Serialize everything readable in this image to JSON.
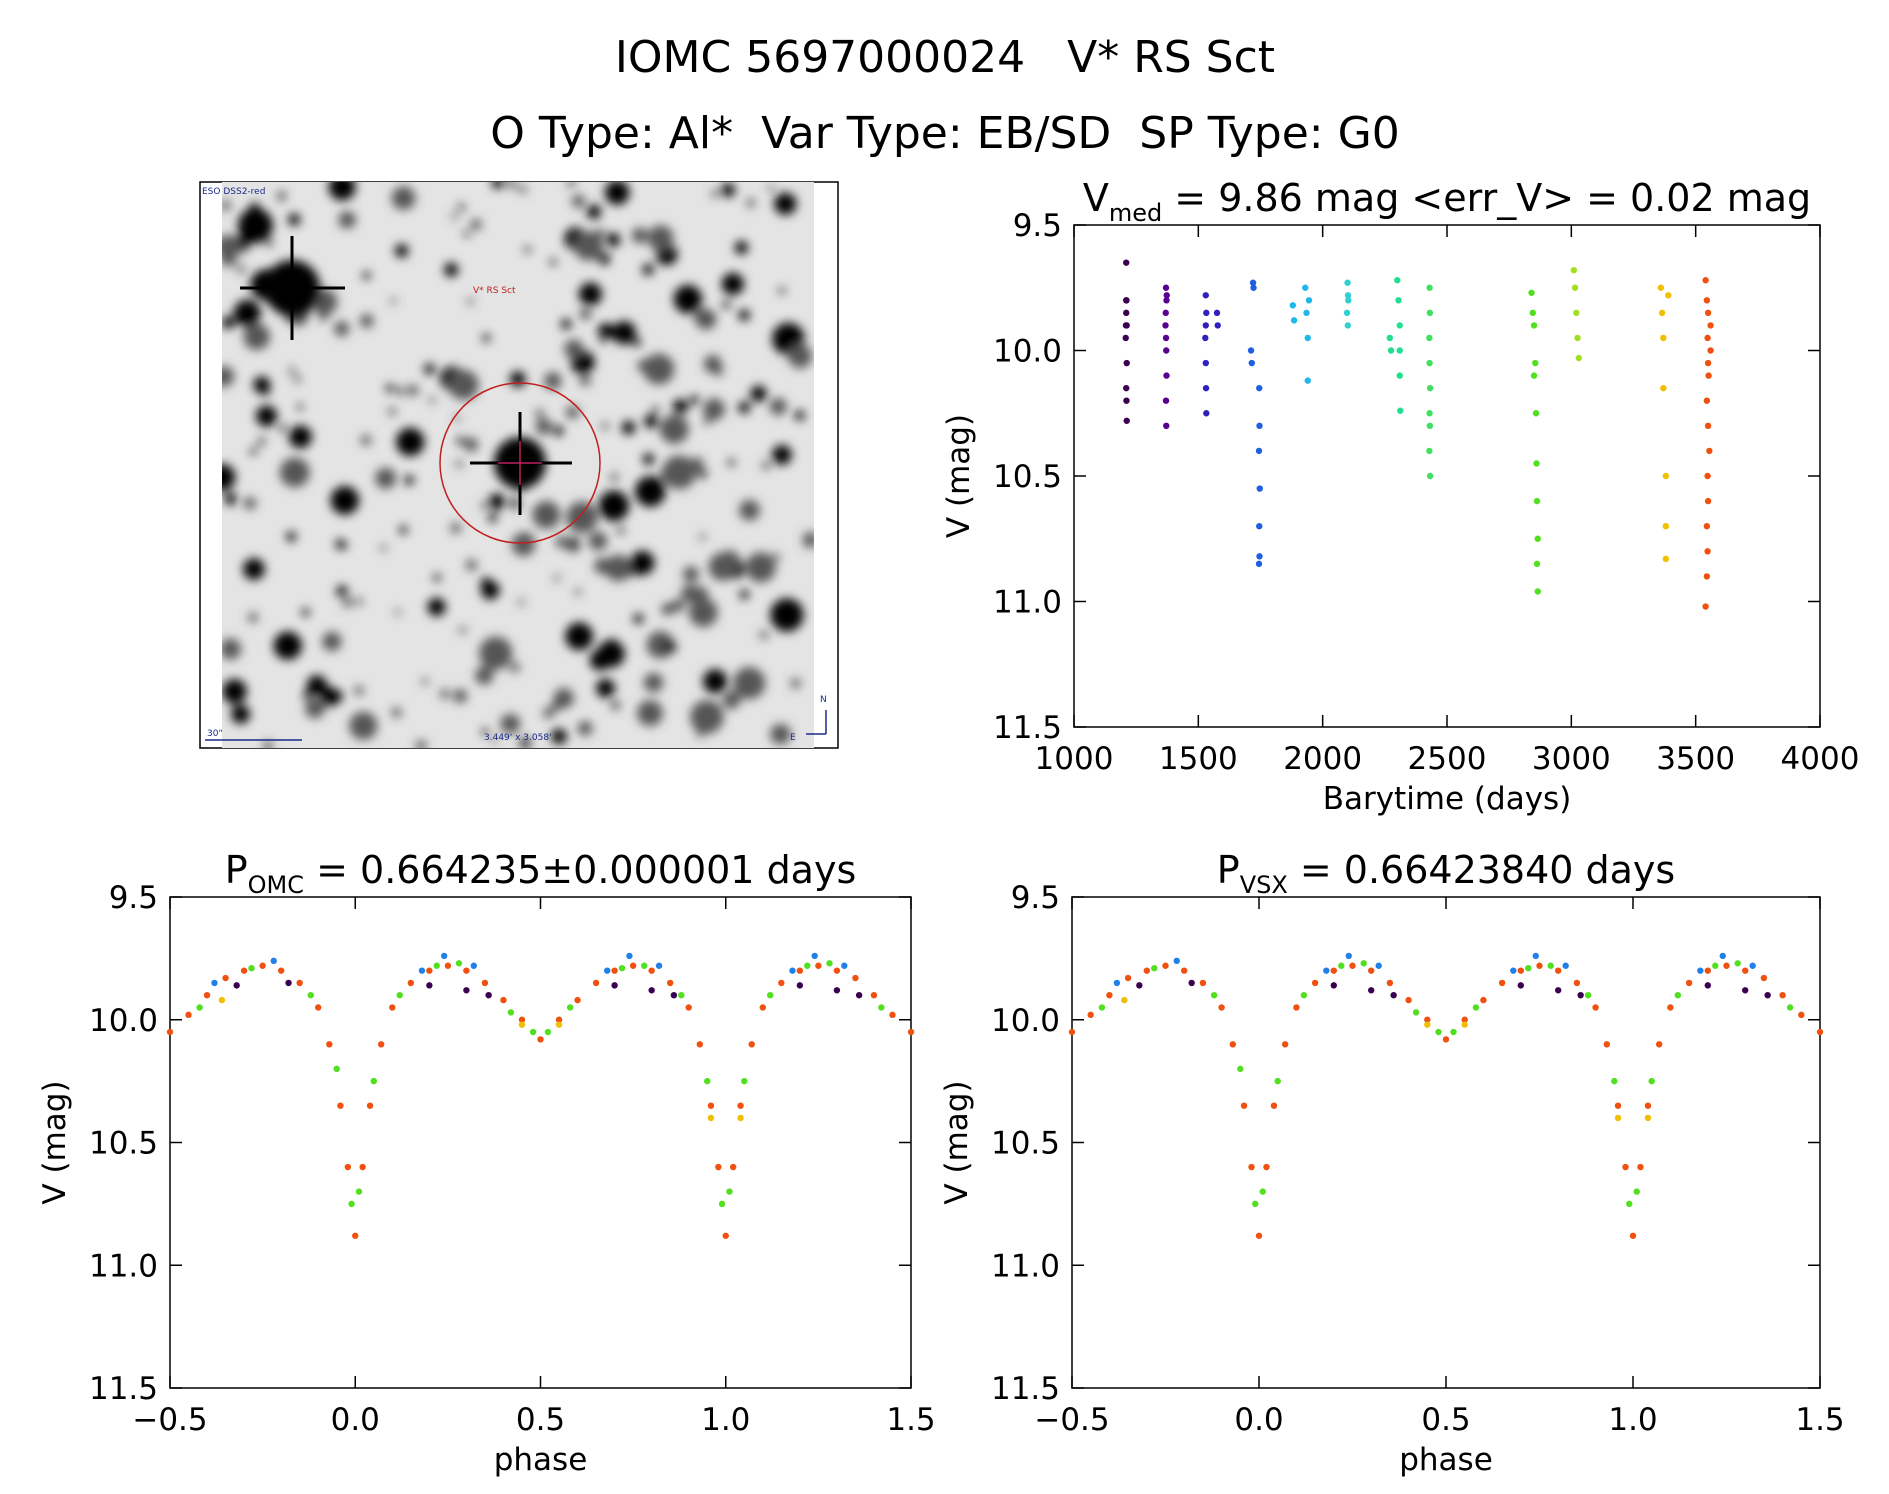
{
  "header": {
    "line1": "IOMC 5697000024   V* RS Sct",
    "line2": "O Type: Al*  Var Type: EB/SD  SP Type: G0"
  },
  "image": {
    "corner_label": "ESO DSS2-red",
    "target_label": "V* RS Sct",
    "scale_label": "30\"",
    "fov_label": "3.449' x 3.058'",
    "north": "N",
    "east": "E"
  },
  "chart_data": [
    {
      "type": "scatter",
      "title": {
        "main": "V",
        "sub": "med",
        "rest": " = 9.86 mag <err_V> = 0.02 mag"
      },
      "x_label": "Barytime (days)",
      "y_label": "V (mag)",
      "xlim": [
        1000,
        4000
      ],
      "xticks": [
        1000,
        1500,
        2000,
        2500,
        3000,
        3500,
        4000
      ],
      "ylim": [
        9.5,
        11.5
      ],
      "y_reversed": true,
      "yticks": [
        9.5,
        {
          "value": 10,
          "label": "10.0"
        },
        10.5,
        {
          "value": 11,
          "label": "11.0"
        },
        11.5
      ],
      "series": [
        {
          "color": "#3a0050",
          "x": [
            1210,
            1210,
            1212,
            1208,
            1211,
            1212,
            1210,
            1211,
            1212,
            1210,
            1209
          ],
          "values": [
            9.8,
            9.85,
            9.9,
            9.95,
            9.8,
            10.05,
            10.15,
            10.2,
            10.28,
            9.65,
            9.9
          ]
        },
        {
          "color": "#5a0090",
          "x": [
            1370,
            1372,
            1368,
            1370,
            1371,
            1372,
            1370,
            1371,
            1369,
            1373
          ],
          "values": [
            9.75,
            9.8,
            9.9,
            9.95,
            10.0,
            10.1,
            10.2,
            10.3,
            9.85,
            9.78
          ]
        },
        {
          "color": "#3020c0",
          "x": [
            1530,
            1532,
            1528,
            1530,
            1531,
            1532,
            1530,
            1575,
            1578
          ],
          "values": [
            9.78,
            9.85,
            9.95,
            10.05,
            10.15,
            10.25,
            9.9,
            9.85,
            9.9
          ]
        },
        {
          "color": "#2060e0",
          "x": [
            1720,
            1722,
            1715,
            1712,
            1745,
            1746,
            1744,
            1747,
            1745,
            1746,
            1744
          ],
          "values": [
            9.73,
            9.75,
            10.05,
            10.0,
            10.15,
            10.3,
            10.4,
            10.55,
            10.7,
            10.82,
            10.85
          ]
        },
        {
          "color": "#20b8e8",
          "x": [
            1880,
            1885,
            1930,
            1935,
            1940,
            1940,
            1945
          ],
          "values": [
            9.82,
            9.88,
            9.75,
            9.85,
            9.95,
            10.12,
            9.8
          ]
        },
        {
          "color": "#30d0d0",
          "x": [
            2100,
            2102,
            2098,
            2101,
            2103
          ],
          "values": [
            9.73,
            9.78,
            9.85,
            9.9,
            9.8
          ]
        },
        {
          "color": "#20e090",
          "x": [
            2270,
            2275,
            2300,
            2305,
            2310,
            2310,
            2310,
            2312
          ],
          "values": [
            9.95,
            10.0,
            9.72,
            9.8,
            9.9,
            10.0,
            10.1,
            10.24
          ]
        },
        {
          "color": "#40e060",
          "x": [
            2430,
            2431,
            2429,
            2430,
            2432,
            2430,
            2431,
            2429,
            2432
          ],
          "values": [
            9.75,
            9.85,
            9.95,
            10.05,
            10.15,
            10.25,
            10.3,
            10.4,
            10.5
          ]
        },
        {
          "color": "#50e020",
          "x": [
            2840,
            2845,
            2850,
            2855,
            2858,
            2860,
            2862,
            2865,
            2862,
            2865,
            2850
          ],
          "values": [
            9.77,
            9.85,
            9.9,
            10.05,
            10.25,
            10.45,
            10.6,
            10.75,
            10.85,
            10.96,
            10.1
          ]
        },
        {
          "color": "#a0e020",
          "x": [
            3010,
            3015,
            3020,
            3025,
            3030
          ],
          "values": [
            9.68,
            9.75,
            9.85,
            9.95,
            10.03
          ]
        },
        {
          "color": "#f0c000",
          "x": [
            3360,
            3365,
            3370,
            3370,
            3380,
            3380,
            3380,
            3390
          ],
          "values": [
            9.75,
            9.85,
            9.95,
            10.15,
            10.5,
            10.7,
            10.83,
            9.78
          ]
        },
        {
          "color": "#f05010",
          "x": [
            3540,
            3545,
            3550,
            3548,
            3550,
            3552,
            3545,
            3550,
            3555,
            3548,
            3550,
            3545,
            3548,
            3545,
            3540,
            3560,
            3560
          ],
          "values": [
            9.72,
            9.8,
            9.85,
            9.95,
            10.05,
            10.1,
            10.2,
            10.3,
            10.4,
            10.5,
            10.6,
            10.7,
            10.8,
            10.9,
            11.02,
            9.9,
            10.0
          ]
        }
      ]
    },
    {
      "type": "scatter",
      "title": {
        "main": "P",
        "sub": "OMC",
        "rest": " = 0.664235±0.000001 days"
      },
      "x_label": "phase",
      "y_label": "V (mag)",
      "xlim": [
        -0.5,
        1.5
      ],
      "xticks": [
        {
          "value": -0.5,
          "label": "−0.5"
        },
        {
          "value": 0,
          "label": "0.0"
        },
        0.5,
        {
          "value": 1,
          "label": "1.0"
        },
        1.5
      ],
      "ylim": [
        9.5,
        11.5
      ],
      "y_reversed": true,
      "yticks": [
        9.5,
        {
          "value": 10,
          "label": "10.0"
        },
        10.5,
        {
          "value": 11,
          "label": "11.0"
        },
        11.5
      ],
      "series": [
        {
          "color": "#f05010",
          "x": [
            -0.5,
            -0.45,
            -0.4,
            -0.35,
            -0.3,
            -0.25,
            -0.2,
            -0.15,
            -0.1,
            -0.07,
            -0.04,
            -0.02,
            0,
            0.02,
            0.04,
            0.07,
            0.1,
            0.15,
            0.2,
            0.25,
            0.3,
            0.35,
            0.4,
            0.45,
            0.5,
            0.55,
            0.6,
            0.65,
            0.7,
            0.75,
            0.8,
            0.85,
            0.9,
            0.93,
            0.96,
            0.98,
            1.0,
            1.02,
            1.04,
            1.07,
            1.1,
            1.15,
            1.2,
            1.25,
            1.3,
            1.35,
            1.4,
            1.45,
            1.5
          ],
          "values": [
            10.05,
            9.98,
            9.9,
            9.83,
            9.8,
            9.78,
            9.8,
            9.85,
            9.95,
            10.1,
            10.35,
            10.6,
            10.88,
            10.6,
            10.35,
            10.1,
            9.95,
            9.85,
            9.8,
            9.78,
            9.8,
            9.85,
            9.92,
            10.0,
            10.08,
            10.0,
            9.92,
            9.85,
            9.8,
            9.78,
            9.8,
            9.85,
            9.95,
            10.1,
            10.35,
            10.6,
            10.88,
            10.6,
            10.35,
            10.1,
            9.95,
            9.85,
            9.8,
            9.78,
            9.8,
            9.83,
            9.9,
            9.98,
            10.05
          ]
        },
        {
          "color": "#50e020",
          "x": [
            -0.42,
            -0.28,
            -0.12,
            -0.05,
            -0.01,
            0.01,
            0.05,
            0.12,
            0.22,
            0.28,
            0.42,
            0.48,
            0.52,
            0.58,
            0.72,
            0.78,
            0.88,
            0.95,
            0.99,
            1.01,
            1.05,
            1.12,
            1.22,
            1.28,
            1.42
          ],
          "values": [
            9.95,
            9.79,
            9.9,
            10.2,
            10.75,
            10.7,
            10.25,
            9.9,
            9.78,
            9.77,
            9.97,
            10.05,
            10.05,
            9.95,
            9.79,
            9.78,
            9.9,
            10.25,
            10.75,
            10.7,
            10.25,
            9.9,
            9.78,
            9.77,
            9.95
          ]
        },
        {
          "color": "#2080e8",
          "x": [
            -0.38,
            -0.22,
            0.18,
            0.24,
            0.32,
            0.68,
            0.74,
            0.82,
            1.18,
            1.24,
            1.32
          ],
          "values": [
            9.85,
            9.76,
            9.8,
            9.74,
            9.78,
            9.8,
            9.74,
            9.78,
            9.8,
            9.74,
            9.78
          ]
        },
        {
          "color": "#3a0050",
          "x": [
            -0.32,
            -0.18,
            0.2,
            0.3,
            0.36,
            0.7,
            0.8,
            0.86,
            1.2,
            1.3,
            1.36
          ],
          "values": [
            9.86,
            9.85,
            9.86,
            9.88,
            9.9,
            9.86,
            9.88,
            9.9,
            9.86,
            9.88,
            9.9
          ]
        },
        {
          "color": "#f0c000",
          "x": [
            -0.36,
            0.45,
            0.55,
            0.96,
            1.04
          ],
          "values": [
            9.92,
            10.02,
            10.02,
            10.4,
            10.4
          ]
        }
      ]
    },
    {
      "type": "scatter",
      "title": {
        "main": "P",
        "sub": "VSX",
        "rest": " = 0.66423840 days"
      },
      "x_label": "phase",
      "y_label": "V (mag)",
      "xlim": [
        -0.5,
        1.5
      ],
      "xticks": [
        {
          "value": -0.5,
          "label": "−0.5"
        },
        {
          "value": 0,
          "label": "0.0"
        },
        0.5,
        {
          "value": 1,
          "label": "1.0"
        },
        1.5
      ],
      "ylim": [
        9.5,
        11.5
      ],
      "y_reversed": true,
      "yticks": [
        9.5,
        {
          "value": 10,
          "label": "10.0"
        },
        10.5,
        {
          "value": 11,
          "label": "11.0"
        },
        11.5
      ],
      "series": [
        {
          "color": "#f05010",
          "x": [
            -0.5,
            -0.45,
            -0.4,
            -0.35,
            -0.3,
            -0.25,
            -0.2,
            -0.15,
            -0.1,
            -0.07,
            -0.04,
            -0.02,
            0,
            0.02,
            0.04,
            0.07,
            0.1,
            0.15,
            0.2,
            0.25,
            0.3,
            0.35,
            0.4,
            0.45,
            0.5,
            0.55,
            0.6,
            0.65,
            0.7,
            0.75,
            0.8,
            0.85,
            0.9,
            0.93,
            0.96,
            0.98,
            1.0,
            1.02,
            1.04,
            1.07,
            1.1,
            1.15,
            1.2,
            1.25,
            1.3,
            1.35,
            1.4,
            1.45,
            1.5
          ],
          "values": [
            10.05,
            9.98,
            9.9,
            9.83,
            9.8,
            9.78,
            9.8,
            9.85,
            9.95,
            10.1,
            10.35,
            10.6,
            10.88,
            10.6,
            10.35,
            10.1,
            9.95,
            9.85,
            9.8,
            9.78,
            9.8,
            9.85,
            9.92,
            10.0,
            10.08,
            10.0,
            9.92,
            9.85,
            9.8,
            9.78,
            9.8,
            9.85,
            9.95,
            10.1,
            10.35,
            10.6,
            10.88,
            10.6,
            10.35,
            10.1,
            9.95,
            9.85,
            9.8,
            9.78,
            9.8,
            9.83,
            9.9,
            9.98,
            10.05
          ]
        },
        {
          "color": "#50e020",
          "x": [
            -0.42,
            -0.28,
            -0.12,
            -0.05,
            -0.01,
            0.01,
            0.05,
            0.12,
            0.22,
            0.28,
            0.42,
            0.48,
            0.52,
            0.58,
            0.72,
            0.78,
            0.88,
            0.95,
            0.99,
            1.01,
            1.05,
            1.12,
            1.22,
            1.28,
            1.42
          ],
          "values": [
            9.95,
            9.79,
            9.9,
            10.2,
            10.75,
            10.7,
            10.25,
            9.9,
            9.78,
            9.77,
            9.97,
            10.05,
            10.05,
            9.95,
            9.79,
            9.78,
            9.9,
            10.25,
            10.75,
            10.7,
            10.25,
            9.9,
            9.78,
            9.77,
            9.95
          ]
        },
        {
          "color": "#2080e8",
          "x": [
            -0.38,
            -0.22,
            0.18,
            0.24,
            0.32,
            0.68,
            0.74,
            0.82,
            1.18,
            1.24,
            1.32
          ],
          "values": [
            9.85,
            9.76,
            9.8,
            9.74,
            9.78,
            9.8,
            9.74,
            9.78,
            9.8,
            9.74,
            9.78
          ]
        },
        {
          "color": "#3a0050",
          "x": [
            -0.32,
            -0.18,
            0.2,
            0.3,
            0.36,
            0.7,
            0.8,
            0.86,
            1.2,
            1.3,
            1.36
          ],
          "values": [
            9.86,
            9.85,
            9.86,
            9.88,
            9.9,
            9.86,
            9.88,
            9.9,
            9.86,
            9.88,
            9.9
          ]
        },
        {
          "color": "#f0c000",
          "x": [
            -0.36,
            0.45,
            0.55,
            0.96,
            1.04
          ],
          "values": [
            9.92,
            10.02,
            10.02,
            10.4,
            10.4
          ]
        }
      ]
    }
  ]
}
